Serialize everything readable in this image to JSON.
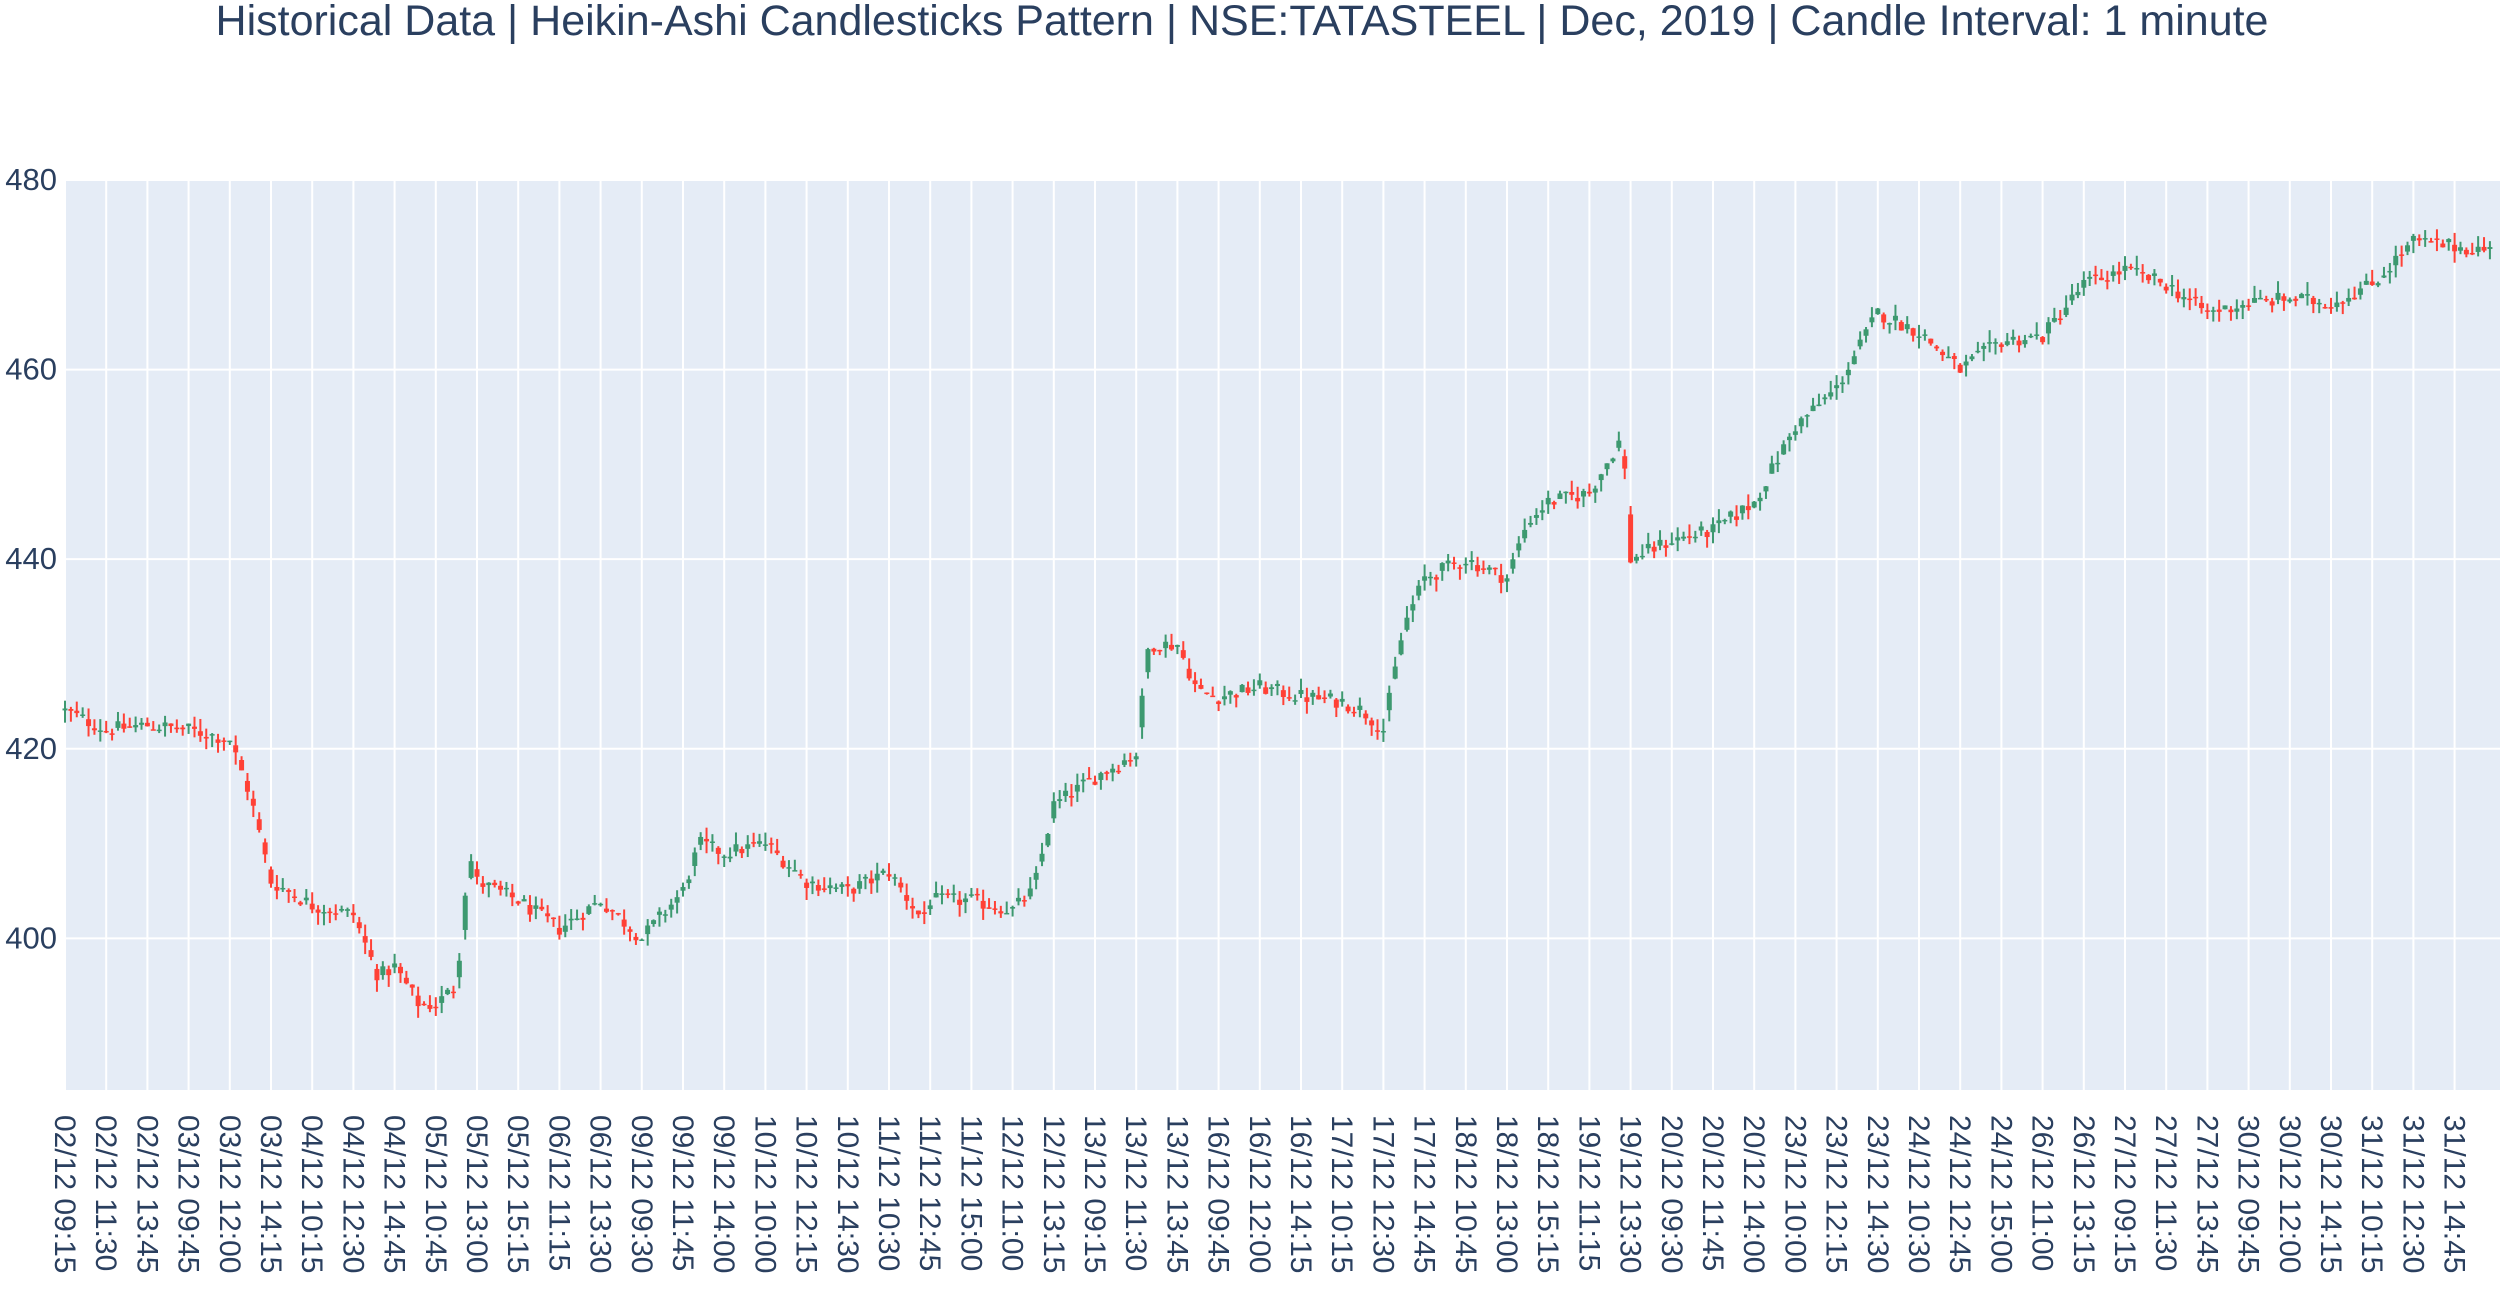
{
  "chart_data": {
    "type": "candlestick",
    "variant": "Heikin-Ashi",
    "title": "Historical Data | Heikin-Ashi Candlesticks Pattern | NSE:TATASTEEL | Dec, 2019 | Candle Interval: 1 minute",
    "xlabel": "",
    "ylabel": "",
    "ylim": [
      384,
      480
    ],
    "yticks": [
      400,
      420,
      440,
      460,
      480
    ],
    "grid": true,
    "legend": "none",
    "colors": {
      "increasing": "#3d9970",
      "decreasing": "#ff4136",
      "plot_bg": "#e5ecf6",
      "grid": "#ffffff",
      "text": "#2a3f5f"
    },
    "x_tick_labels": [
      "02/12 09:15",
      "02/12 11:30",
      "02/12 13:45",
      "03/12 09:45",
      "03/12 12:00",
      "03/12 14:15",
      "04/12 10:15",
      "04/12 12:30",
      "04/12 14:45",
      "05/12 10:45",
      "05/12 13:00",
      "05/12 15:15",
      "06/12 11:15",
      "06/12 13:30",
      "09/12 09:30",
      "09/12 11:45",
      "09/12 14:00",
      "10/12 10:00",
      "10/12 12:15",
      "10/12 14:30",
      "11/12 10:30",
      "11/12 12:45",
      "11/12 15:00",
      "12/12 11:00",
      "12/12 13:15",
      "13/12 09:15",
      "13/12 11:30",
      "13/12 13:45",
      "16/12 09:45",
      "16/12 12:00",
      "16/12 14:15",
      "17/12 10:15",
      "17/12 12:30",
      "17/12 14:45",
      "18/12 10:45",
      "18/12 13:00",
      "18/12 15:15",
      "19/12 11:15",
      "19/12 13:30",
      "20/12 09:30",
      "20/12 11:45",
      "20/12 14:00",
      "23/12 10:00",
      "23/12 12:15",
      "23/12 14:30",
      "24/12 10:30",
      "24/12 12:45",
      "24/12 15:00",
      "26/12 11:00",
      "26/12 13:15",
      "27/12 09:15",
      "27/12 11:30",
      "27/12 13:45",
      "30/12 09:45",
      "30/12 12:00",
      "30/12 14:15",
      "31/12 10:15",
      "31/12 12:30",
      "31/12 14:45"
    ],
    "price_path": [
      [
        0,
        424
      ],
      [
        1,
        422
      ],
      [
        2,
        422.5
      ],
      [
        3,
        422
      ],
      [
        4,
        421
      ],
      [
        4.5,
        415
      ],
      [
        5,
        406
      ],
      [
        6,
        403.5
      ],
      [
        7,
        402.5
      ],
      [
        7.6,
        396
      ],
      [
        8,
        397
      ],
      [
        8.6,
        393
      ],
      [
        9,
        393
      ],
      [
        9.5,
        395
      ],
      [
        9.8,
        409
      ],
      [
        10,
        406
      ],
      [
        11,
        404
      ],
      [
        12,
        401
      ],
      [
        13,
        404
      ],
      [
        14,
        400
      ],
      [
        15,
        405
      ],
      [
        15.4,
        410
      ],
      [
        16,
        409
      ],
      [
        17,
        410
      ],
      [
        17.5,
        408
      ],
      [
        18,
        406
      ],
      [
        19,
        405
      ],
      [
        20,
        407
      ],
      [
        20.8,
        402
      ],
      [
        21,
        404
      ],
      [
        22,
        404
      ],
      [
        23,
        403
      ],
      [
        23.5,
        405
      ],
      [
        24,
        414
      ],
      [
        25,
        417
      ],
      [
        26,
        419.5
      ],
      [
        26.3,
        431
      ],
      [
        27,
        431
      ],
      [
        27.5,
        426
      ],
      [
        28,
        425.5
      ],
      [
        29,
        426.5
      ],
      [
        30,
        425.5
      ],
      [
        31,
        425
      ],
      [
        31.5,
        424
      ],
      [
        32,
        422
      ],
      [
        32.5,
        433
      ],
      [
        33,
        438
      ],
      [
        34,
        440
      ],
      [
        35,
        438
      ],
      [
        35.5,
        444
      ],
      [
        36,
        446
      ],
      [
        37,
        447
      ],
      [
        37.8,
        453
      ],
      [
        38,
        440
      ],
      [
        39,
        442
      ],
      [
        40,
        443
      ],
      [
        41,
        446
      ],
      [
        42,
        454
      ],
      [
        43,
        458
      ],
      [
        44,
        466
      ],
      [
        45,
        464
      ],
      [
        46,
        460
      ],
      [
        47,
        463
      ],
      [
        48,
        463.5
      ],
      [
        49,
        469
      ],
      [
        50,
        470.5
      ],
      [
        51,
        469
      ],
      [
        52,
        466
      ],
      [
        53,
        467
      ],
      [
        54,
        467.5
      ],
      [
        55,
        467
      ],
      [
        56,
        469
      ],
      [
        57,
        473.5
      ],
      [
        58,
        473
      ],
      [
        59,
        472.5
      ],
      [
        60,
        471.5
      ]
    ]
  }
}
